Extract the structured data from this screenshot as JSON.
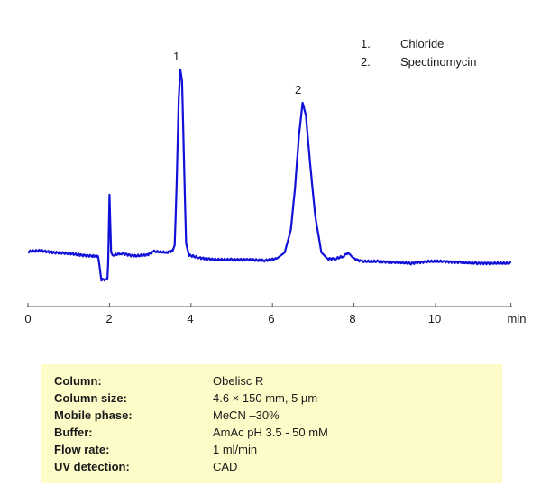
{
  "chart_data": {
    "type": "line",
    "title": "",
    "xlabel": "min",
    "ylabel": "",
    "xlim": [
      0,
      12
    ],
    "x_ticks": [
      0,
      2,
      4,
      6,
      8,
      10
    ],
    "x_tick_labels": [
      "0",
      "2",
      "4",
      "6",
      "8",
      "10"
    ],
    "x_unit_label": "min",
    "grid": false,
    "legend_position": "top-right",
    "series": [
      {
        "name": "chromatogram",
        "color": "#1010d8",
        "points": [
          [
            0.0,
            279
          ],
          [
            0.3,
            278
          ],
          [
            0.6,
            280
          ],
          [
            1.0,
            281
          ],
          [
            1.3,
            283
          ],
          [
            1.6,
            284
          ],
          [
            1.72,
            284
          ],
          [
            1.75,
            293
          ],
          [
            1.8,
            310
          ],
          [
            1.95,
            310
          ],
          [
            1.97,
            290
          ],
          [
            2.0,
            216
          ],
          [
            2.04,
            280
          ],
          [
            2.1,
            283
          ],
          [
            2.3,
            281
          ],
          [
            2.6,
            284
          ],
          [
            2.9,
            283
          ],
          [
            3.1,
            279
          ],
          [
            3.4,
            280
          ],
          [
            3.55,
            278
          ],
          [
            3.6,
            272
          ],
          [
            3.65,
            200
          ],
          [
            3.7,
            110
          ],
          [
            3.74,
            77
          ],
          [
            3.78,
            90
          ],
          [
            3.83,
            180
          ],
          [
            3.88,
            270
          ],
          [
            3.95,
            283
          ],
          [
            4.2,
            286
          ],
          [
            4.6,
            288
          ],
          [
            5.0,
            288
          ],
          [
            5.4,
            288
          ],
          [
            5.8,
            289
          ],
          [
            6.1,
            287
          ],
          [
            6.3,
            280
          ],
          [
            6.45,
            255
          ],
          [
            6.55,
            210
          ],
          [
            6.65,
            150
          ],
          [
            6.74,
            114
          ],
          [
            6.82,
            128
          ],
          [
            6.92,
            180
          ],
          [
            7.05,
            240
          ],
          [
            7.2,
            280
          ],
          [
            7.35,
            287
          ],
          [
            7.55,
            287
          ],
          [
            7.75,
            284
          ],
          [
            7.85,
            280
          ],
          [
            8.0,
            287
          ],
          [
            8.2,
            290
          ],
          [
            8.6,
            290
          ],
          [
            9.0,
            291
          ],
          [
            9.4,
            292
          ],
          [
            9.8,
            290
          ],
          [
            10.2,
            290
          ],
          [
            10.6,
            291
          ],
          [
            11.0,
            292
          ],
          [
            11.4,
            292
          ],
          [
            11.85,
            292
          ]
        ],
        "y_unit_note": "y values are in pixel coordinates (no y-axis shown); smaller = taller signal"
      }
    ],
    "peaks": [
      {
        "label": "1",
        "compound": "Chloride",
        "retention_min": 3.74
      },
      {
        "label": "2",
        "compound": "Spectinomycin",
        "retention_min": 6.74
      }
    ],
    "legend": [
      {
        "num": "1.",
        "name": "Chloride"
      },
      {
        "num": "2.",
        "name": "Spectinomycin"
      }
    ]
  },
  "legend": [
    {
      "num": "1.",
      "name": "Chloride"
    },
    {
      "num": "2.",
      "name": "Spectinomycin"
    }
  ],
  "peak_labels": [
    "1",
    "2"
  ],
  "axis": {
    "ticks": [
      "0",
      "2",
      "4",
      "6",
      "8",
      "10"
    ],
    "unit": "min"
  },
  "conditions": [
    {
      "key": "Column:",
      "value": "Obelisc R"
    },
    {
      "key": "Column size:",
      "value": "4.6 × 150 mm, 5 µm"
    },
    {
      "key": "Mobile phase:",
      "value": "MeCN –30%"
    },
    {
      "key": "Buffer:",
      "value": "AmAc pH 3.5 - 50 mM"
    },
    {
      "key": "Flow rate:",
      "value": "1 ml/min"
    },
    {
      "key": "UV detection:",
      "value": "CAD"
    }
  ],
  "colors": {
    "trace": "#1010d8",
    "axis": "#555555",
    "info_box_bg": "#fdfcc8"
  }
}
